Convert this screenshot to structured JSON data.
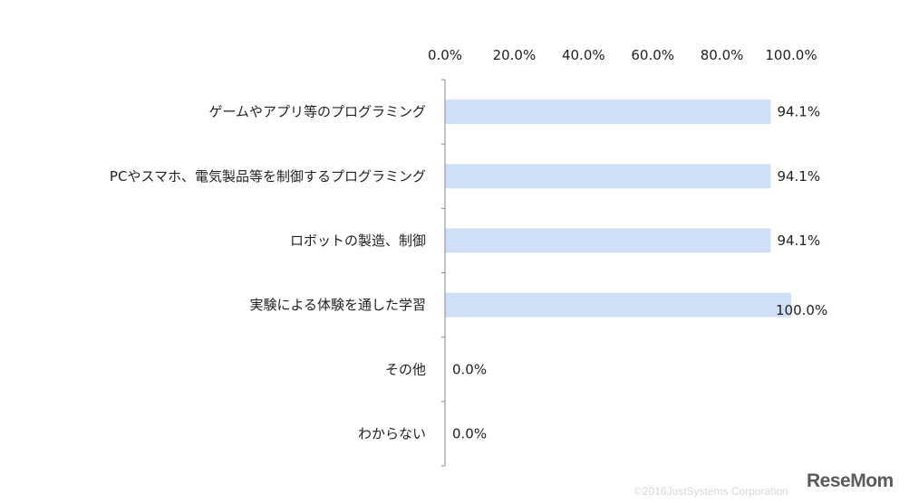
{
  "chart_data": {
    "type": "bar",
    "orientation": "horizontal",
    "categories": [
      "ゲームやアプリ等のプログラミング",
      "PCやスマホ、電気製品等を制御するプログラミング",
      "ロボットの製造、制御",
      "実験による体験を通した学習",
      "その他",
      "わからない"
    ],
    "values": [
      94.1,
      94.1,
      94.1,
      100.0,
      0.0,
      0.0
    ],
    "value_labels": [
      "94.1%",
      "94.1%",
      "94.1%",
      "100.0%",
      "0.0%",
      "0.0%"
    ],
    "xlim": [
      0,
      100
    ],
    "x_ticks": [
      "0.0%",
      "20.0%",
      "40.0%",
      "60.0%",
      "80.0%",
      "100.0%"
    ],
    "x_axis_position": "top",
    "grid": false,
    "bar_color": "#cfdff7",
    "title": "",
    "xlabel": "",
    "ylabel": ""
  },
  "footer": {
    "copyright": "©2016JustSystems Corporation",
    "logo_text": "ReseMom"
  }
}
